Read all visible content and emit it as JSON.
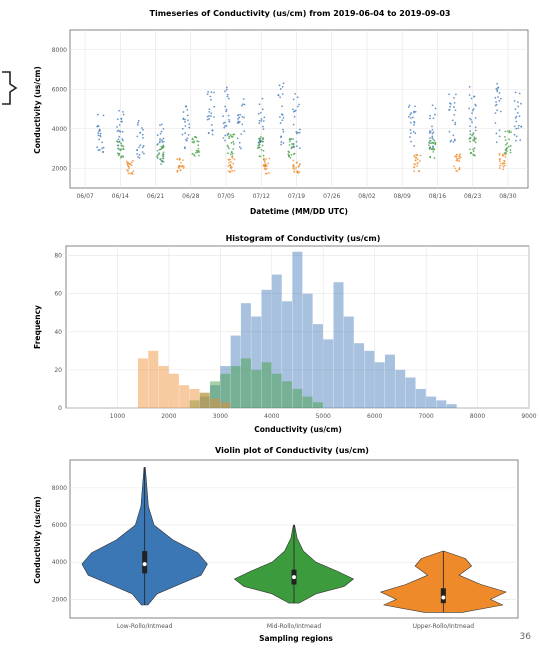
{
  "page_number": "36",
  "colors": {
    "blue": "#3b76b5",
    "green": "#3c9b3c",
    "orange": "#ef8a2a",
    "grid": "#e5e5e5",
    "frame": "#666666"
  },
  "chart_data": [
    {
      "type": "scatter",
      "title": "Timeseries of Conductivity (us/cm) from 2019-06-04 to 2019-09-03",
      "xlabel": "Datetime (MM/DD UTC)",
      "ylabel": "Conductivity (us/cm)",
      "ylim": [
        1000,
        9000
      ],
      "x_ticks": [
        "06/07",
        "06/14",
        "06/21",
        "06/28",
        "07/05",
        "07/12",
        "07/19",
        "07/26",
        "08/02",
        "08/09",
        "08/16",
        "08/23",
        "08/30"
      ],
      "y_ticks": [
        2000,
        4000,
        6000,
        8000
      ],
      "grid": true,
      "series": [
        {
          "color": "#3b76b5",
          "clusters": [
            {
              "x": "06/10",
              "y": [
                2600,
                4800
              ]
            },
            {
              "x": "06/14",
              "y": [
                2800,
                5000
              ]
            },
            {
              "x": "06/18",
              "y": [
                2500,
                4600
              ]
            },
            {
              "x": "06/22",
              "y": [
                2300,
                4400
              ]
            },
            {
              "x": "06/27",
              "y": [
                2900,
                5200
              ]
            },
            {
              "x": "07/02",
              "y": [
                3500,
                6100
              ]
            },
            {
              "x": "07/05",
              "y": [
                3200,
                6200
              ]
            },
            {
              "x": "07/08",
              "y": [
                3000,
                5600
              ]
            },
            {
              "x": "07/12",
              "y": [
                3000,
                5800
              ]
            },
            {
              "x": "07/16",
              "y": [
                3200,
                6400
              ]
            },
            {
              "x": "07/19",
              "y": [
                3000,
                5900
              ]
            },
            {
              "x": "08/11",
              "y": [
                3000,
                5200
              ]
            },
            {
              "x": "08/15",
              "y": [
                2800,
                5400
              ]
            },
            {
              "x": "08/19",
              "y": [
                3000,
                5800
              ]
            },
            {
              "x": "08/23",
              "y": [
                3100,
                6200
              ]
            },
            {
              "x": "08/28",
              "y": [
                3200,
                6500
              ]
            },
            {
              "x": "09/01",
              "y": [
                3300,
                5900
              ]
            }
          ]
        },
        {
          "color": "#3c9b3c",
          "clusters": [
            {
              "x": "06/14",
              "y": [
                2500,
                3400
              ]
            },
            {
              "x": "06/22",
              "y": [
                2200,
                3200
              ]
            },
            {
              "x": "06/29",
              "y": [
                2600,
                3600
              ]
            },
            {
              "x": "07/06",
              "y": [
                2600,
                3800
              ]
            },
            {
              "x": "07/12",
              "y": [
                2400,
                3600
              ]
            },
            {
              "x": "07/18",
              "y": [
                2500,
                3500
              ]
            },
            {
              "x": "08/15",
              "y": [
                2400,
                3500
              ]
            },
            {
              "x": "08/23",
              "y": [
                2600,
                3800
              ]
            },
            {
              "x": "08/30",
              "y": [
                2700,
                3900
              ]
            }
          ]
        },
        {
          "color": "#ef8a2a",
          "clusters": [
            {
              "x": "06/16",
              "y": [
                1700,
                2400
              ]
            },
            {
              "x": "06/26",
              "y": [
                1800,
                2500
              ]
            },
            {
              "x": "07/06",
              "y": [
                1700,
                2600
              ]
            },
            {
              "x": "07/13",
              "y": [
                1600,
                2500
              ]
            },
            {
              "x": "07/19",
              "y": [
                1700,
                2400
              ]
            },
            {
              "x": "08/12",
              "y": [
                1800,
                2700
              ]
            },
            {
              "x": "08/20",
              "y": [
                1800,
                2800
              ]
            },
            {
              "x": "08/29",
              "y": [
                1900,
                2800
              ]
            }
          ]
        }
      ]
    },
    {
      "type": "bar",
      "title": "Histogram of Conductivity (us/cm)",
      "xlabel": "Conductivity (us/cm)",
      "ylabel": "Frequency",
      "xlim": [
        0,
        9000
      ],
      "ylim": [
        0,
        85
      ],
      "x_ticks": [
        1000,
        2000,
        3000,
        4000,
        5000,
        6000,
        7000,
        8000,
        9000
      ],
      "y_ticks": [
        0,
        20,
        40,
        60,
        80
      ],
      "bin_width": 200,
      "series": [
        {
          "color": "#3b76b5",
          "bin_start": [
            2600,
            2800,
            3000,
            3200,
            3400,
            3600,
            3800,
            4000,
            4200,
            4400,
            4600,
            4800,
            5000,
            5200,
            5400,
            5600,
            5800,
            6000,
            6200,
            6400,
            6600,
            6800,
            7000,
            7200,
            7400
          ],
          "counts": [
            6,
            12,
            22,
            38,
            55,
            48,
            62,
            70,
            56,
            82,
            60,
            44,
            36,
            66,
            48,
            34,
            30,
            24,
            28,
            20,
            16,
            10,
            6,
            4,
            2
          ]
        },
        {
          "color": "#3c9b3c",
          "bin_start": [
            2400,
            2600,
            2800,
            3000,
            3200,
            3400,
            3600,
            3800,
            4000,
            4200,
            4400,
            4600,
            4800
          ],
          "counts": [
            4,
            8,
            14,
            18,
            22,
            26,
            20,
            24,
            18,
            14,
            10,
            6,
            3
          ]
        },
        {
          "color": "#ef8a2a",
          "bin_start": [
            1400,
            1600,
            1800,
            2000,
            2200,
            2400,
            2600,
            2800,
            3000
          ],
          "counts": [
            26,
            30,
            22,
            18,
            12,
            10,
            8,
            5,
            3
          ]
        }
      ]
    },
    {
      "type": "violin",
      "title": "Violin plot of Conductivity (us/cm)",
      "xlabel": "Sampling regions",
      "ylabel": "Conductivity (us/cm)",
      "ylim": [
        1000,
        9500
      ],
      "y_ticks": [
        2000,
        4000,
        6000,
        8000
      ],
      "grid": true,
      "categories": [
        "Low-Rollo/Intmead",
        "Mid-Rollo/Intmead",
        "Upper-Rollo/Intmead"
      ],
      "series": [
        {
          "color": "#3b76b5",
          "min": 1700,
          "max": 9100,
          "q1": 3400,
          "median": 3900,
          "q3": 4600,
          "profile": [
            [
              1700,
              0.05
            ],
            [
              2300,
              0.2
            ],
            [
              2800,
              0.55
            ],
            [
              3300,
              0.9
            ],
            [
              3900,
              1.0
            ],
            [
              4500,
              0.85
            ],
            [
              5200,
              0.45
            ],
            [
              6000,
              0.15
            ],
            [
              7000,
              0.06
            ],
            [
              9100,
              0.01
            ]
          ]
        },
        {
          "color": "#3c9b3c",
          "min": 1800,
          "max": 6000,
          "q1": 2800,
          "median": 3200,
          "q3": 3600,
          "profile": [
            [
              1800,
              0.08
            ],
            [
              2300,
              0.35
            ],
            [
              2700,
              0.8
            ],
            [
              3100,
              0.95
            ],
            [
              3500,
              0.7
            ],
            [
              4000,
              0.35
            ],
            [
              4600,
              0.15
            ],
            [
              5300,
              0.05
            ],
            [
              6000,
              0.01
            ]
          ]
        },
        {
          "color": "#ef8a2a",
          "min": 1300,
          "max": 4600,
          "q1": 1800,
          "median": 2100,
          "q3": 2600,
          "profile": [
            [
              1300,
              0.3
            ],
            [
              1700,
              0.95
            ],
            [
              2000,
              0.75
            ],
            [
              2400,
              1.0
            ],
            [
              2800,
              0.6
            ],
            [
              3300,
              0.25
            ],
            [
              3800,
              0.45
            ],
            [
              4200,
              0.35
            ],
            [
              4600,
              0.01
            ]
          ]
        }
      ]
    }
  ]
}
